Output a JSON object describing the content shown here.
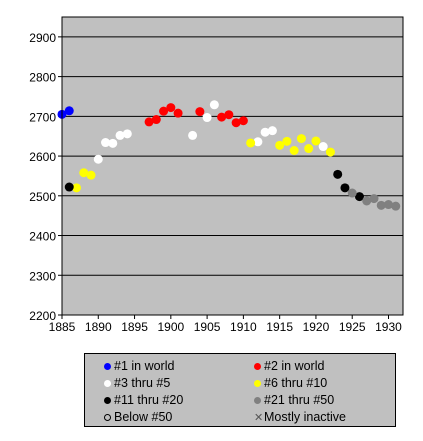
{
  "chart_data": {
    "type": "scatter",
    "title": "",
    "xlabel": "",
    "ylabel": "",
    "xlim": [
      1885,
      1932
    ],
    "ylim": [
      2200,
      2950
    ],
    "x_ticks": [
      1885,
      1890,
      1895,
      1900,
      1905,
      1910,
      1915,
      1920,
      1925,
      1930
    ],
    "y_ticks": [
      2200,
      2300,
      2400,
      2500,
      2600,
      2700,
      2800,
      2900
    ],
    "grid": true,
    "legend_position": "bottom",
    "series": [
      {
        "name": "#1 in world",
        "color": "#0000ff",
        "points": [
          [
            1885,
            2705
          ],
          [
            1886,
            2714
          ]
        ]
      },
      {
        "name": "#2 in world",
        "color": "#ff0000",
        "points": [
          [
            1897,
            2686
          ],
          [
            1898,
            2692
          ],
          [
            1899,
            2713
          ],
          [
            1900,
            2722
          ],
          [
            1901,
            2708
          ],
          [
            1904,
            2712
          ],
          [
            1907,
            2698
          ],
          [
            1908,
            2704
          ],
          [
            1909,
            2684
          ],
          [
            1910,
            2689
          ]
        ]
      },
      {
        "name": "#3 thru #5",
        "color": "#ffffff",
        "points": [
          [
            1890,
            2592
          ],
          [
            1891,
            2634
          ],
          [
            1892,
            2632
          ],
          [
            1893,
            2652
          ],
          [
            1894,
            2656
          ],
          [
            1903,
            2652
          ],
          [
            1905,
            2697
          ],
          [
            1906,
            2729
          ],
          [
            1912,
            2636
          ],
          [
            1913,
            2660
          ],
          [
            1914,
            2664
          ],
          [
            1921,
            2624
          ]
        ]
      },
      {
        "name": "#6 thru #10",
        "color": "#ffff00",
        "points": [
          [
            1887,
            2520
          ],
          [
            1888,
            2558
          ],
          [
            1889,
            2552
          ],
          [
            1911,
            2633
          ],
          [
            1915,
            2627
          ],
          [
            1916,
            2637
          ],
          [
            1917,
            2614
          ],
          [
            1918,
            2644
          ],
          [
            1919,
            2619
          ],
          [
            1920,
            2638
          ],
          [
            1922,
            2610
          ]
        ]
      },
      {
        "name": "#11 thru #20",
        "color": "#000000",
        "points": [
          [
            1886,
            2522
          ],
          [
            1923,
            2554
          ],
          [
            1924,
            2520
          ],
          [
            1926,
            2498
          ]
        ]
      },
      {
        "name": "#21 thru #50",
        "color": "#808080",
        "points": [
          [
            1925,
            2507
          ],
          [
            1927,
            2487
          ],
          [
            1928,
            2493
          ],
          [
            1929,
            2476
          ],
          [
            1930,
            2478
          ],
          [
            1931,
            2474
          ]
        ]
      },
      {
        "name": "Below #50",
        "color": "#ffffff",
        "points": []
      },
      {
        "name": "Mostly inactive",
        "color": "#808080",
        "points": []
      }
    ]
  },
  "legend": {
    "items": [
      {
        "label": "#1 in world",
        "marker": "dot",
        "color": "#0000ff"
      },
      {
        "label": "#2 in world",
        "marker": "dot",
        "color": "#ff0000"
      },
      {
        "label": "#3 thru #5",
        "marker": "dot",
        "color": "#ffffff"
      },
      {
        "label": "#6 thru #10",
        "marker": "dot",
        "color": "#ffff00"
      },
      {
        "label": "#11 thru #20",
        "marker": "dot",
        "color": "#000000"
      },
      {
        "label": "#21 thru #50",
        "marker": "dot",
        "color": "#808080"
      },
      {
        "label": "Below #50",
        "marker": "ring",
        "color": "#000000"
      },
      {
        "label": "Mostly inactive",
        "marker": "x",
        "color": "#555555"
      }
    ]
  },
  "colors": {
    "plot_background": "#c0c0c0",
    "grid": "#000000"
  }
}
